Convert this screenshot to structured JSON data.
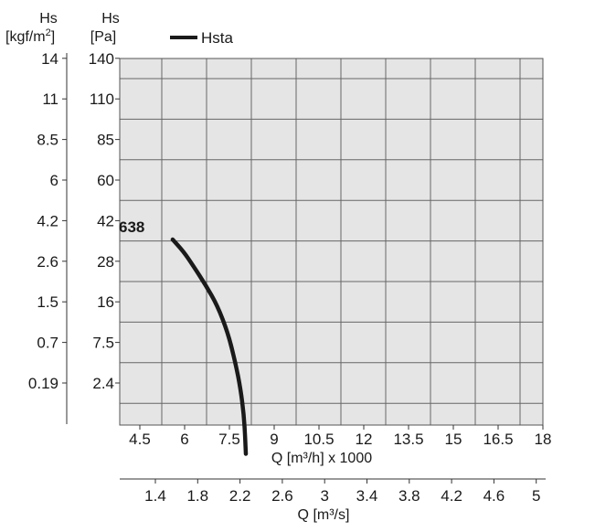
{
  "chart_data": {
    "type": "line",
    "legend": {
      "label": "Hsta",
      "placement": "top"
    },
    "left_axis_outer": {
      "title_line1": "Hs",
      "title_line2_base": "[kgf/m",
      "title_line2_sup": "2",
      "title_line2_end": "]",
      "tick_labels": [
        "14",
        "11",
        "8.5",
        "6",
        "4.2",
        "2.6",
        "1.5",
        "0.7",
        "0.19"
      ]
    },
    "left_axis_inner": {
      "title_line1": "Hs",
      "title_line2": "[Pa]",
      "ticks": [
        140,
        110,
        85,
        60,
        42,
        28,
        16,
        7.5,
        2.4
      ],
      "tick_labels": [
        "140",
        "110",
        "85",
        "60",
        "42",
        "28",
        "16",
        "7.5",
        "2.4"
      ]
    },
    "x_axis_primary": {
      "label": "Q [m³/h] x 1000",
      "ticks": [
        4.5,
        6,
        7.5,
        9,
        10.5,
        12,
        13.5,
        15,
        16.5,
        18
      ],
      "tick_labels": [
        "4.5",
        "6",
        "7.5",
        "9",
        "10.5",
        "12",
        "13.5",
        "15",
        "16.5",
        "18"
      ]
    },
    "x_axis_secondary": {
      "label": "Q [m³/s]",
      "tick_labels": [
        "1.4",
        "1.8",
        "2.2",
        "2.6",
        "3",
        "3.4",
        "3.8",
        "4.2",
        "4.6",
        "5"
      ]
    },
    "grid": true,
    "series": [
      {
        "label": "638",
        "color": "#1a1a1a",
        "points": [
          [
            5.6,
            35.5
          ],
          [
            5.95,
            31.5
          ],
          [
            6.3,
            26.5
          ],
          [
            6.7,
            21
          ],
          [
            7.1,
            15.2
          ],
          [
            7.45,
            9.5
          ],
          [
            7.7,
            5.0
          ],
          [
            7.88,
            1.5
          ],
          [
            7.98,
            -1.5
          ],
          [
            8.03,
            -4.5
          ],
          [
            8.05,
            -6.5
          ]
        ]
      }
    ]
  }
}
